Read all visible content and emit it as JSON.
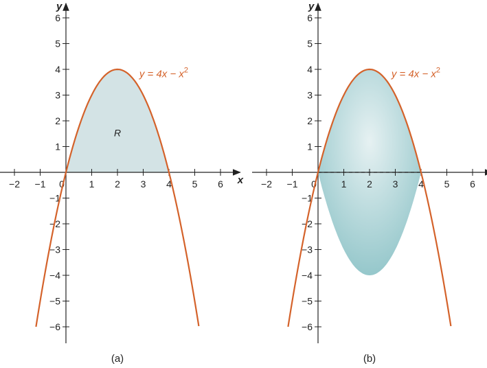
{
  "chart_data": [
    {
      "type": "line",
      "panel_label": "(a)",
      "function_label": {
        "lhs": "y",
        "rhs": "4x − x",
        "exponent": "2"
      },
      "function": "4x - x^2",
      "curve_x_range": [
        -1.162,
        5.162
      ],
      "shaded_region": {
        "label": "R",
        "description_bounds": "between y = 4x − x² and y = 0 for 0 ≤ x ≤ 4"
      },
      "xlabel": "x",
      "ylabel": "y",
      "xlim": [
        -2.5,
        6.5
      ],
      "ylim": [
        -6.5,
        6.5
      ],
      "x_ticks": [
        "−2",
        "−1",
        "0",
        "1",
        "2",
        "3",
        "4",
        "5",
        "6"
      ],
      "y_ticks": [
        "−6",
        "−5",
        "−4",
        "−3",
        "−2",
        "−1",
        "1",
        "2",
        "3",
        "4",
        "5",
        "6"
      ],
      "grid": false
    },
    {
      "type": "line",
      "panel_label": "(b)",
      "function_label": {
        "lhs": "y",
        "rhs": "4x − x",
        "exponent": "2"
      },
      "function": "4x - x^2",
      "curve_x_range": [
        -1.162,
        5.162
      ],
      "shaded_region": {
        "label": "",
        "description_bounds": "solid of revolution about x-axis, 0 ≤ x ≤ 4, radius 4x − x²"
      },
      "dashed_axis_segment": [
        0,
        4
      ],
      "xlabel": "x",
      "ylabel": "y",
      "xlim": [
        -2.5,
        6.5
      ],
      "ylim": [
        -6.5,
        6.5
      ],
      "x_ticks": [
        "−2",
        "−1",
        "0",
        "1",
        "2",
        "3",
        "4",
        "5",
        "6"
      ],
      "y_ticks": [
        "−6",
        "−5",
        "−4",
        "−3",
        "−2",
        "−1",
        "1",
        "2",
        "3",
        "4",
        "5",
        "6"
      ],
      "grid": false
    }
  ],
  "colors": {
    "curve": "#d4622a",
    "fill_a": "#d3e3e5",
    "fill_b": "#8fc4c8",
    "axis": "#222222"
  }
}
